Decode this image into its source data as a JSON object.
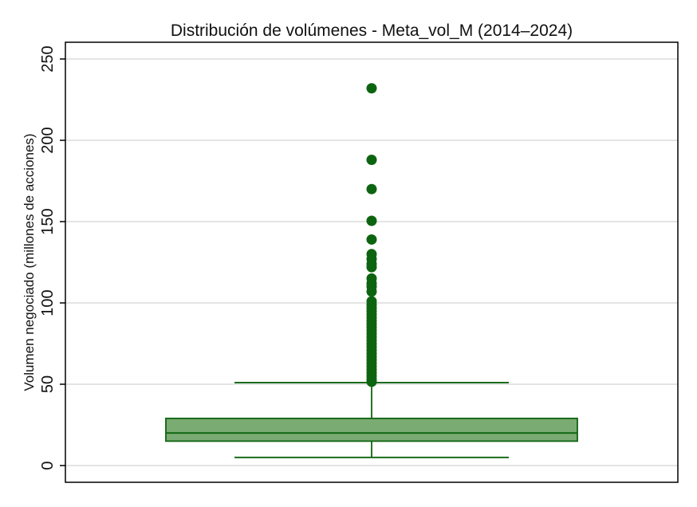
{
  "chart_data": {
    "type": "box",
    "title": "Distribución de volúmenes - Meta_vol_M (2014–2024)",
    "xlabel": "",
    "ylabel": "Volumen negociado (millones de acciones)",
    "ylim": [
      -10,
      260
    ],
    "yticks": [
      0,
      50,
      100,
      150,
      200,
      250
    ],
    "ytick_labels": [
      "0",
      "50",
      "100",
      "150",
      "200",
      "250"
    ],
    "grid": true,
    "colors": {
      "fill": "#7aab72",
      "stroke": "#0d6410",
      "outlier": "#0d6410",
      "grid": "#dcdcdc"
    },
    "box": {
      "whisker_low": 5,
      "q1": 15,
      "median": 20,
      "q3": 29,
      "whisker_high": 51
    },
    "outliers": [
      232,
      188,
      170,
      150.5,
      139,
      130,
      127,
      124,
      122,
      115,
      112,
      110,
      107,
      101,
      99,
      97,
      95,
      93,
      91,
      89,
      87,
      85,
      83,
      81,
      79,
      77,
      75,
      73,
      71,
      69,
      67,
      65,
      63,
      61,
      59,
      57,
      55,
      53,
      51.5
    ]
  }
}
